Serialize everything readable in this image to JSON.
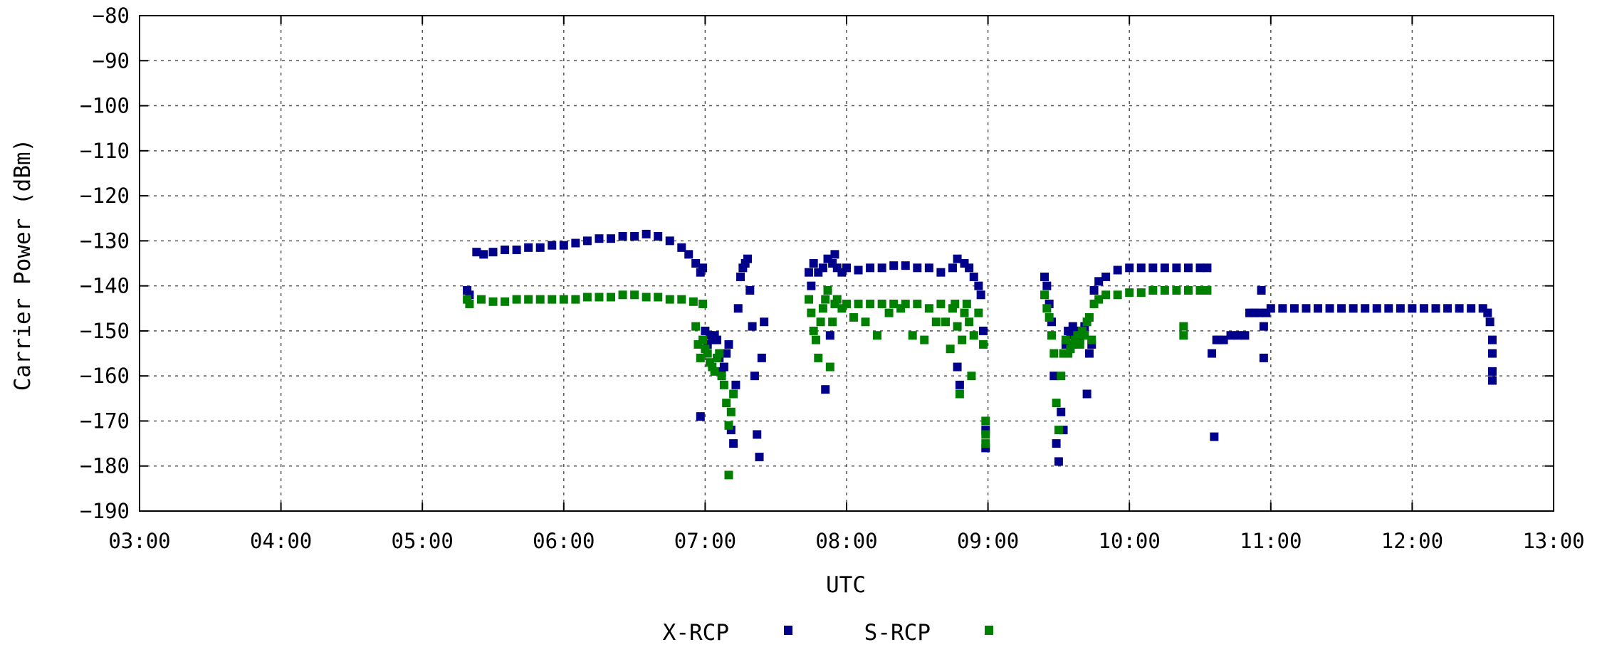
{
  "chart_data": {
    "type": "scatter",
    "title": "",
    "xlabel": "UTC",
    "ylabel": "Carrier Power (dBm)",
    "x_ticks": [
      "03:00",
      "04:00",
      "05:00",
      "06:00",
      "07:00",
      "08:00",
      "09:00",
      "10:00",
      "11:00",
      "12:00",
      "13:00"
    ],
    "y_ticks": [
      -80,
      -90,
      -100,
      -110,
      -120,
      -130,
      -140,
      -150,
      -160,
      -170,
      -180,
      -190
    ],
    "xlim": [
      "03:00",
      "13:00"
    ],
    "ylim": [
      -190,
      -80
    ],
    "grid": true,
    "legend_position": "bottom-center",
    "series": [
      {
        "name": "X-RCP",
        "color": "#00008b",
        "points": [
          [
            "05:19",
            -141
          ],
          [
            "05:20",
            -142
          ],
          [
            "05:23",
            -132.5
          ],
          [
            "05:26",
            -133
          ],
          [
            "05:30",
            -132.5
          ],
          [
            "05:35",
            -132
          ],
          [
            "05:40",
            -132
          ],
          [
            "05:45",
            -131.5
          ],
          [
            "05:50",
            -131.5
          ],
          [
            "05:55",
            -131
          ],
          [
            "06:00",
            -131
          ],
          [
            "06:05",
            -130.5
          ],
          [
            "06:10",
            -130
          ],
          [
            "06:15",
            -129.5
          ],
          [
            "06:20",
            -129.5
          ],
          [
            "06:25",
            -129
          ],
          [
            "06:30",
            -129
          ],
          [
            "06:35",
            -128.5
          ],
          [
            "06:40",
            -129
          ],
          [
            "06:45",
            -130
          ],
          [
            "06:50",
            -131.5
          ],
          [
            "06:53",
            -133
          ],
          [
            "06:56",
            -135
          ],
          [
            "06:58",
            -137
          ],
          [
            "06:59",
            -136
          ],
          [
            "06:58",
            -169
          ],
          [
            "07:00",
            -150
          ],
          [
            "07:01",
            -153
          ],
          [
            "07:02",
            -151
          ],
          [
            "07:03",
            -152
          ],
          [
            "07:04",
            -151
          ],
          [
            "07:05",
            -152
          ],
          [
            "07:06",
            -156
          ],
          [
            "07:07",
            -159
          ],
          [
            "07:08",
            -158
          ],
          [
            "07:09",
            -155
          ],
          [
            "07:10",
            -153
          ],
          [
            "07:11",
            -172
          ],
          [
            "07:12",
            -175
          ],
          [
            "07:13",
            -162
          ],
          [
            "07:14",
            -145
          ],
          [
            "07:15",
            -138
          ],
          [
            "07:16",
            -136
          ],
          [
            "07:17",
            -135
          ],
          [
            "07:18",
            -134
          ],
          [
            "07:19",
            -141
          ],
          [
            "07:20",
            -149
          ],
          [
            "07:21",
            -160
          ],
          [
            "07:22",
            -173
          ],
          [
            "07:23",
            -178
          ],
          [
            "07:24",
            -156
          ],
          [
            "07:25",
            -148
          ],
          [
            "07:44",
            -137
          ],
          [
            "07:45",
            -140
          ],
          [
            "07:46",
            -135
          ],
          [
            "07:48",
            -137
          ],
          [
            "07:50",
            -136
          ],
          [
            "07:52",
            -134
          ],
          [
            "07:54",
            -135
          ],
          [
            "07:55",
            -133
          ],
          [
            "07:56",
            -136
          ],
          [
            "07:58",
            -137
          ],
          [
            "07:51",
            -163
          ],
          [
            "07:53",
            -151
          ],
          [
            "08:00",
            -136
          ],
          [
            "08:05",
            -136.5
          ],
          [
            "08:10",
            -136
          ],
          [
            "08:15",
            -136
          ],
          [
            "08:20",
            -135.5
          ],
          [
            "08:25",
            -135.5
          ],
          [
            "08:30",
            -136
          ],
          [
            "08:35",
            -136
          ],
          [
            "08:40",
            -137
          ],
          [
            "08:45",
            -136
          ],
          [
            "08:47",
            -134
          ],
          [
            "08:50",
            -135
          ],
          [
            "08:52",
            -136
          ],
          [
            "08:54",
            -138
          ],
          [
            "08:56",
            -140
          ],
          [
            "08:57",
            -142
          ],
          [
            "08:58",
            -150
          ],
          [
            "08:59",
            -172
          ],
          [
            "08:59",
            -176
          ],
          [
            "08:47",
            -158
          ],
          [
            "08:48",
            -162
          ],
          [
            "09:24",
            -138
          ],
          [
            "09:25",
            -140
          ],
          [
            "09:26",
            -144
          ],
          [
            "09:27",
            -148
          ],
          [
            "09:28",
            -160
          ],
          [
            "09:29",
            -175
          ],
          [
            "09:30",
            -179
          ],
          [
            "09:31",
            -168
          ],
          [
            "09:32",
            -172
          ],
          [
            "09:33",
            -153
          ],
          [
            "09:34",
            -150
          ],
          [
            "09:35",
            -151
          ],
          [
            "09:36",
            -149
          ],
          [
            "09:37",
            -150
          ],
          [
            "09:38",
            -151
          ],
          [
            "09:39",
            -152
          ],
          [
            "09:40",
            -150
          ],
          [
            "09:41",
            -149
          ],
          [
            "09:42",
            -164
          ],
          [
            "09:43",
            -155
          ],
          [
            "09:44",
            -153
          ],
          [
            "09:45",
            -141
          ],
          [
            "09:47",
            -139
          ],
          [
            "09:50",
            -138
          ],
          [
            "09:55",
            -136.5
          ],
          [
            "10:00",
            -136
          ],
          [
            "10:05",
            -136
          ],
          [
            "10:10",
            -136
          ],
          [
            "10:15",
            -136
          ],
          [
            "10:20",
            -136
          ],
          [
            "10:25",
            -136
          ],
          [
            "10:30",
            -136
          ],
          [
            "10:33",
            -136
          ],
          [
            "10:35",
            -155
          ],
          [
            "10:36",
            -173.5
          ],
          [
            "10:37",
            -152
          ],
          [
            "10:38",
            -152
          ],
          [
            "10:40",
            -152
          ],
          [
            "10:43",
            -151
          ],
          [
            "10:46",
            -151
          ],
          [
            "10:49",
            -151
          ],
          [
            "10:51",
            -146
          ],
          [
            "10:53",
            -146
          ],
          [
            "10:55",
            -146
          ],
          [
            "10:56",
            -141
          ],
          [
            "10:57",
            -149
          ],
          [
            "10:57",
            -156
          ],
          [
            "10:58",
            -146
          ],
          [
            "11:00",
            -145
          ],
          [
            "11:05",
            -145
          ],
          [
            "11:10",
            -145
          ],
          [
            "11:15",
            -145
          ],
          [
            "11:20",
            -145
          ],
          [
            "11:25",
            -145
          ],
          [
            "11:30",
            -145
          ],
          [
            "11:35",
            -145
          ],
          [
            "11:40",
            -145
          ],
          [
            "11:45",
            -145
          ],
          [
            "11:50",
            -145
          ],
          [
            "11:55",
            -145
          ],
          [
            "12:00",
            -145
          ],
          [
            "12:05",
            -145
          ],
          [
            "12:10",
            -145
          ],
          [
            "12:15",
            -145
          ],
          [
            "12:20",
            -145
          ],
          [
            "12:25",
            -145
          ],
          [
            "12:30",
            -145
          ],
          [
            "12:32",
            -146
          ],
          [
            "12:33",
            -148
          ],
          [
            "12:34",
            -152
          ],
          [
            "12:34",
            -155
          ],
          [
            "12:34",
            -159
          ],
          [
            "12:34",
            -161
          ]
        ]
      },
      {
        "name": "S-RCP",
        "color": "#008000",
        "points": [
          [
            "05:19",
            -143
          ],
          [
            "05:20",
            -144
          ],
          [
            "05:25",
            -143
          ],
          [
            "05:30",
            -143.5
          ],
          [
            "05:35",
            -143.5
          ],
          [
            "05:40",
            -143
          ],
          [
            "05:45",
            -143
          ],
          [
            "05:50",
            -143
          ],
          [
            "05:55",
            -143
          ],
          [
            "06:00",
            -143
          ],
          [
            "06:05",
            -143
          ],
          [
            "06:10",
            -142.5
          ],
          [
            "06:15",
            -142.5
          ],
          [
            "06:20",
            -142.5
          ],
          [
            "06:25",
            -142
          ],
          [
            "06:30",
            -142
          ],
          [
            "06:35",
            -142.5
          ],
          [
            "06:40",
            -142.5
          ],
          [
            "06:45",
            -143
          ],
          [
            "06:50",
            -143
          ],
          [
            "06:55",
            -143.5
          ],
          [
            "06:59",
            -144
          ],
          [
            "06:56",
            -149
          ],
          [
            "06:57",
            -153
          ],
          [
            "06:58",
            -156
          ],
          [
            "06:59",
            -152
          ],
          [
            "07:00",
            -154
          ],
          [
            "07:01",
            -155
          ],
          [
            "07:02",
            -157
          ],
          [
            "07:03",
            -158
          ],
          [
            "07:04",
            -159
          ],
          [
            "07:05",
            -156
          ],
          [
            "07:06",
            -155
          ],
          [
            "07:07",
            -160
          ],
          [
            "07:08",
            -162
          ],
          [
            "07:09",
            -166
          ],
          [
            "07:10",
            -171
          ],
          [
            "07:10",
            -182
          ],
          [
            "07:11",
            -168
          ],
          [
            "07:12",
            -164
          ],
          [
            "07:44",
            -143
          ],
          [
            "07:45",
            -146
          ],
          [
            "07:46",
            -150
          ],
          [
            "07:47",
            -152
          ],
          [
            "07:48",
            -156
          ],
          [
            "07:49",
            -148
          ],
          [
            "07:50",
            -145
          ],
          [
            "07:51",
            -143
          ],
          [
            "07:52",
            -141
          ],
          [
            "07:53",
            -158
          ],
          [
            "07:54",
            -148
          ],
          [
            "07:55",
            -144
          ],
          [
            "07:56",
            -143
          ],
          [
            "07:58",
            -145
          ],
          [
            "08:00",
            -144
          ],
          [
            "08:03",
            -147
          ],
          [
            "08:05",
            -144
          ],
          [
            "08:08",
            -148
          ],
          [
            "08:10",
            -144
          ],
          [
            "08:13",
            -151
          ],
          [
            "08:15",
            -144
          ],
          [
            "08:18",
            -146
          ],
          [
            "08:20",
            -144
          ],
          [
            "08:23",
            -145
          ],
          [
            "08:25",
            -144
          ],
          [
            "08:28",
            -151
          ],
          [
            "08:30",
            -144
          ],
          [
            "08:33",
            -152
          ],
          [
            "08:35",
            -145
          ],
          [
            "08:38",
            -148
          ],
          [
            "08:40",
            -144
          ],
          [
            "08:42",
            -148
          ],
          [
            "08:44",
            -154
          ],
          [
            "08:45",
            -145
          ],
          [
            "08:46",
            -144
          ],
          [
            "08:47",
            -149
          ],
          [
            "08:48",
            -164
          ],
          [
            "08:49",
            -152
          ],
          [
            "08:50",
            -146
          ],
          [
            "08:51",
            -144
          ],
          [
            "08:52",
            -148
          ],
          [
            "08:53",
            -160
          ],
          [
            "08:54",
            -151
          ],
          [
            "08:56",
            -146
          ],
          [
            "08:58",
            -153
          ],
          [
            "08:59",
            -170
          ],
          [
            "08:59",
            -173
          ],
          [
            "08:59",
            -175
          ],
          [
            "09:24",
            -142
          ],
          [
            "09:25",
            -145
          ],
          [
            "09:26",
            -147
          ],
          [
            "09:27",
            -151
          ],
          [
            "09:28",
            -155
          ],
          [
            "09:29",
            -166
          ],
          [
            "09:30",
            -172
          ],
          [
            "09:31",
            -160
          ],
          [
            "09:32",
            -155
          ],
          [
            "09:33",
            -152
          ],
          [
            "09:34",
            -155
          ],
          [
            "09:35",
            -154
          ],
          [
            "09:36",
            -153
          ],
          [
            "09:37",
            -152
          ],
          [
            "09:38",
            -151
          ],
          [
            "09:39",
            -153
          ],
          [
            "09:40",
            -150
          ],
          [
            "09:41",
            -151
          ],
          [
            "09:42",
            -148
          ],
          [
            "09:43",
            -147
          ],
          [
            "09:44",
            -152
          ],
          [
            "09:45",
            -144
          ],
          [
            "09:47",
            -143
          ],
          [
            "09:50",
            -142
          ],
          [
            "09:55",
            -142
          ],
          [
            "10:00",
            -141.5
          ],
          [
            "10:05",
            -141.5
          ],
          [
            "10:10",
            -141
          ],
          [
            "10:15",
            -141
          ],
          [
            "10:20",
            -141
          ],
          [
            "10:23",
            -149
          ],
          [
            "10:23",
            -151
          ],
          [
            "10:25",
            -141
          ],
          [
            "10:30",
            -141
          ],
          [
            "10:33",
            -141
          ]
        ]
      }
    ]
  }
}
